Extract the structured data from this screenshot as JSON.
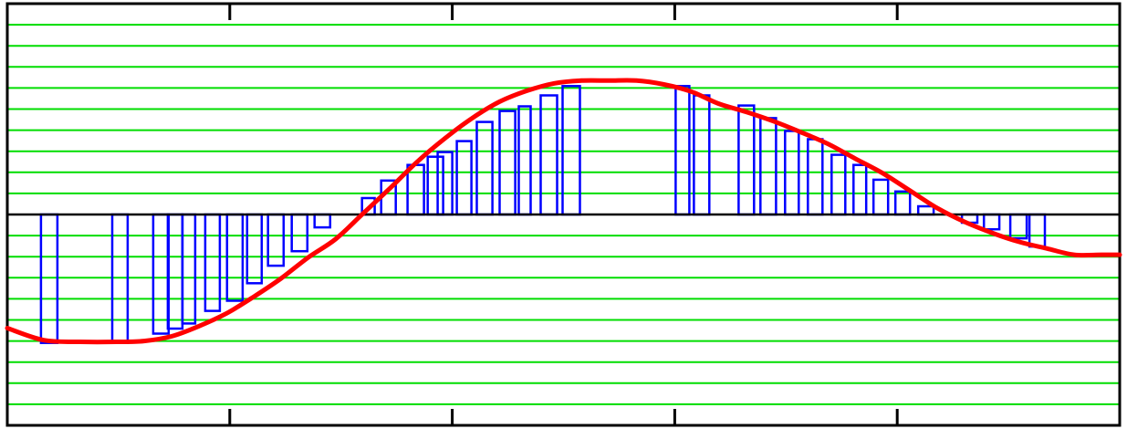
{
  "chart_data": {
    "type": "bar",
    "title": "",
    "xlabel": "",
    "ylabel": "",
    "xlim": [
      0,
      1
    ],
    "ylim": [
      -10,
      10
    ],
    "grid": true,
    "x_ticks": [
      0.2,
      0.4,
      0.6,
      0.8
    ],
    "colors": {
      "grid": "#00dd00",
      "bars": "#0000ff",
      "curve": "#ff0000",
      "axis": "#000000",
      "frame": "#000000",
      "background": "#ffffff"
    },
    "series": [
      {
        "kind": "bar",
        "values": [
          {
            "x0": 0.0303,
            "x1": 0.0451,
            "y": -6.09
          },
          {
            "x0": 0.0943,
            "x1": 0.1082,
            "y": -6.09
          },
          {
            "x0": 0.1312,
            "x1": 0.1451,
            "y": -5.65
          },
          {
            "x0": 0.1443,
            "x1": 0.1574,
            "y": -5.41
          },
          {
            "x0": 0.1574,
            "x1": 0.1689,
            "y": -5.17
          },
          {
            "x0": 0.1779,
            "x1": 0.191,
            "y": -4.57
          },
          {
            "x0": 0.1975,
            "x1": 0.2115,
            "y": -4.09
          },
          {
            "x0": 0.2156,
            "x1": 0.2287,
            "y": -3.26
          },
          {
            "x0": 0.2344,
            "x1": 0.2484,
            "y": -2.43
          },
          {
            "x0": 0.2557,
            "x1": 0.2697,
            "y": -1.74
          },
          {
            "x0": 0.2762,
            "x1": 0.2902,
            "y": -0.61
          },
          {
            "x0": 0.3189,
            "x1": 0.3303,
            "y": 0.78
          },
          {
            "x0": 0.3361,
            "x1": 0.3492,
            "y": 1.61
          },
          {
            "x0": 0.3598,
            "x1": 0.3746,
            "y": 2.35
          },
          {
            "x0": 0.3779,
            "x1": 0.3918,
            "y": 2.74
          },
          {
            "x0": 0.3869,
            "x1": 0.4,
            "y": 2.96
          },
          {
            "x0": 0.4041,
            "x1": 0.4172,
            "y": 3.48
          },
          {
            "x0": 0.4221,
            "x1": 0.4361,
            "y": 4.39
          },
          {
            "x0": 0.4426,
            "x1": 0.4566,
            "y": 4.91
          },
          {
            "x0": 0.4598,
            "x1": 0.4705,
            "y": 5.13
          },
          {
            "x0": 0.4795,
            "x1": 0.4943,
            "y": 5.65
          },
          {
            "x0": 0.4992,
            "x1": 0.5148,
            "y": 6.09
          },
          {
            "x0": 0.6008,
            "x1": 0.6131,
            "y": 6.09
          },
          {
            "x0": 0.6172,
            "x1": 0.6311,
            "y": 5.65
          },
          {
            "x0": 0.6574,
            "x1": 0.6713,
            "y": 5.17
          },
          {
            "x0": 0.677,
            "x1": 0.691,
            "y": 4.57
          },
          {
            "x0": 0.6992,
            "x1": 0.7115,
            "y": 3.96
          },
          {
            "x0": 0.7197,
            "x1": 0.7328,
            "y": 3.57
          },
          {
            "x0": 0.741,
            "x1": 0.7533,
            "y": 2.83
          },
          {
            "x0": 0.7607,
            "x1": 0.7721,
            "y": 2.35
          },
          {
            "x0": 0.7787,
            "x1": 0.7918,
            "y": 1.65
          },
          {
            "x0": 0.7984,
            "x1": 0.8115,
            "y": 1.09
          },
          {
            "x0": 0.8189,
            "x1": 0.8328,
            "y": 0.39
          },
          {
            "x0": 0.8582,
            "x1": 0.8721,
            "y": -0.39
          },
          {
            "x0": 0.8779,
            "x1": 0.8918,
            "y": -0.7
          },
          {
            "x0": 0.9016,
            "x1": 0.9164,
            "y": -1.13
          },
          {
            "x0": 0.9189,
            "x1": 0.9328,
            "y": -1.52
          }
        ]
      },
      {
        "kind": "line",
        "x": [
          0.0,
          0.0328,
          0.0656,
          0.0984,
          0.123,
          0.1475,
          0.1721,
          0.1967,
          0.2213,
          0.2459,
          0.2705,
          0.2951,
          0.3197,
          0.3443,
          0.3689,
          0.3934,
          0.418,
          0.4426,
          0.4672,
          0.4918,
          0.5164,
          0.541,
          0.5656,
          0.5902,
          0.6148,
          0.6393,
          0.6639,
          0.6885,
          0.7131,
          0.7377,
          0.7623,
          0.7869,
          0.8115,
          0.8361,
          0.8607,
          0.8852,
          0.9098,
          0.9344,
          0.959,
          0.9836,
          1.0
        ],
        "y": [
          -5.39,
          -5.96,
          -6.04,
          -6.04,
          -6.0,
          -5.78,
          -5.3,
          -4.7,
          -3.91,
          -3.04,
          -2.04,
          -1.17,
          0.04,
          1.26,
          2.52,
          3.61,
          4.57,
          5.35,
          5.87,
          6.22,
          6.35,
          6.35,
          6.35,
          6.17,
          5.83,
          5.26,
          4.87,
          4.43,
          3.91,
          3.35,
          2.65,
          1.96,
          1.13,
          0.3,
          -0.35,
          -0.87,
          -1.3,
          -1.61,
          -1.91,
          -1.91,
          -1.91
        ]
      }
    ]
  }
}
